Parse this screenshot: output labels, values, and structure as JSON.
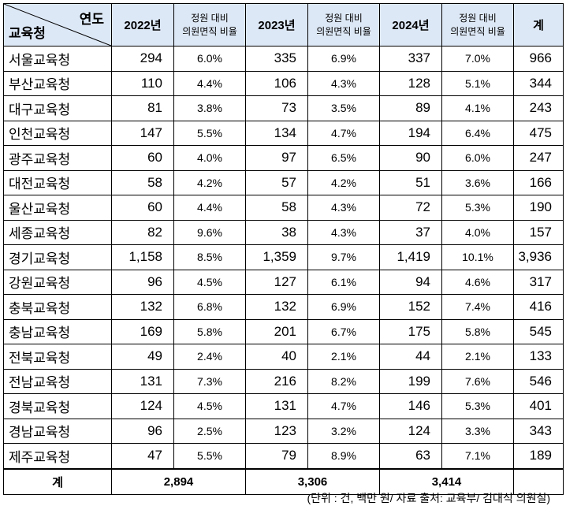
{
  "header": {
    "corner_top": "연도",
    "corner_bottom": "교육청",
    "year_2022": "2022년",
    "year_2023": "2023년",
    "year_2024": "2024년",
    "ratio_label_line1": "정원 대비",
    "ratio_label_line2": "의원면직 비율",
    "total_label": "계"
  },
  "colors": {
    "header_bg": "#dde8f6",
    "border": "#000000"
  },
  "rows": [
    {
      "office": "서울교육청",
      "c2022": "294",
      "r2022": "6.0%",
      "c2023": "335",
      "r2023": "6.9%",
      "c2024": "337",
      "r2024": "7.0%",
      "total": "966"
    },
    {
      "office": "부산교육청",
      "c2022": "110",
      "r2022": "4.4%",
      "c2023": "106",
      "r2023": "4.3%",
      "c2024": "128",
      "r2024": "5.1%",
      "total": "344"
    },
    {
      "office": "대구교육청",
      "c2022": "81",
      "r2022": "3.8%",
      "c2023": "73",
      "r2023": "3.5%",
      "c2024": "89",
      "r2024": "4.1%",
      "total": "243"
    },
    {
      "office": "인천교육청",
      "c2022": "147",
      "r2022": "5.5%",
      "c2023": "134",
      "r2023": "4.7%",
      "c2024": "194",
      "r2024": "6.4%",
      "total": "475"
    },
    {
      "office": "광주교육청",
      "c2022": "60",
      "r2022": "4.0%",
      "c2023": "97",
      "r2023": "6.5%",
      "c2024": "90",
      "r2024": "6.0%",
      "total": "247"
    },
    {
      "office": "대전교육청",
      "c2022": "58",
      "r2022": "4.2%",
      "c2023": "57",
      "r2023": "4.2%",
      "c2024": "51",
      "r2024": "3.6%",
      "total": "166"
    },
    {
      "office": "울산교육청",
      "c2022": "60",
      "r2022": "4.4%",
      "c2023": "58",
      "r2023": "4.3%",
      "c2024": "72",
      "r2024": "5.3%",
      "total": "190"
    },
    {
      "office": "세종교육청",
      "c2022": "82",
      "r2022": "9.6%",
      "c2023": "38",
      "r2023": "4.3%",
      "c2024": "37",
      "r2024": "4.0%",
      "total": "157"
    },
    {
      "office": "경기교육청",
      "c2022": "1,158",
      "r2022": "8.5%",
      "c2023": "1,359",
      "r2023": "9.7%",
      "c2024": "1,419",
      "r2024": "10.1%",
      "total": "3,936"
    },
    {
      "office": "강원교육청",
      "c2022": "96",
      "r2022": "4.5%",
      "c2023": "127",
      "r2023": "6.1%",
      "c2024": "94",
      "r2024": "4.6%",
      "total": "317"
    },
    {
      "office": "충북교육청",
      "c2022": "132",
      "r2022": "6.8%",
      "c2023": "132",
      "r2023": "6.9%",
      "c2024": "152",
      "r2024": "7.4%",
      "total": "416"
    },
    {
      "office": "충남교육청",
      "c2022": "169",
      "r2022": "5.8%",
      "c2023": "201",
      "r2023": "6.7%",
      "c2024": "175",
      "r2024": "5.8%",
      "total": "545"
    },
    {
      "office": "전북교육청",
      "c2022": "49",
      "r2022": "2.4%",
      "c2023": "40",
      "r2023": "2.1%",
      "c2024": "44",
      "r2024": "2.1%",
      "total": "133"
    },
    {
      "office": "전남교육청",
      "c2022": "131",
      "r2022": "7.3%",
      "c2023": "216",
      "r2023": "8.2%",
      "c2024": "199",
      "r2024": "7.6%",
      "total": "546"
    },
    {
      "office": "경북교육청",
      "c2022": "124",
      "r2022": "4.5%",
      "c2023": "131",
      "r2023": "4.7%",
      "c2024": "146",
      "r2024": "5.3%",
      "total": "401"
    },
    {
      "office": "경남교육청",
      "c2022": "96",
      "r2022": "2.5%",
      "c2023": "123",
      "r2023": "3.2%",
      "c2024": "124",
      "r2024": "3.3%",
      "total": "343"
    },
    {
      "office": "제주교육청",
      "c2022": "47",
      "r2022": "5.5%",
      "c2023": "79",
      "r2023": "8.9%",
      "c2024": "63",
      "r2024": "7.1%",
      "total": "189"
    }
  ],
  "footer": {
    "label": "계",
    "sum_2022": "2,894",
    "sum_2023": "3,306",
    "sum_2024": "3,414"
  },
  "source_note": "(단위 : 건, 백만 원/ 자료 출처: 교육부/ 김대식 의원실)"
}
